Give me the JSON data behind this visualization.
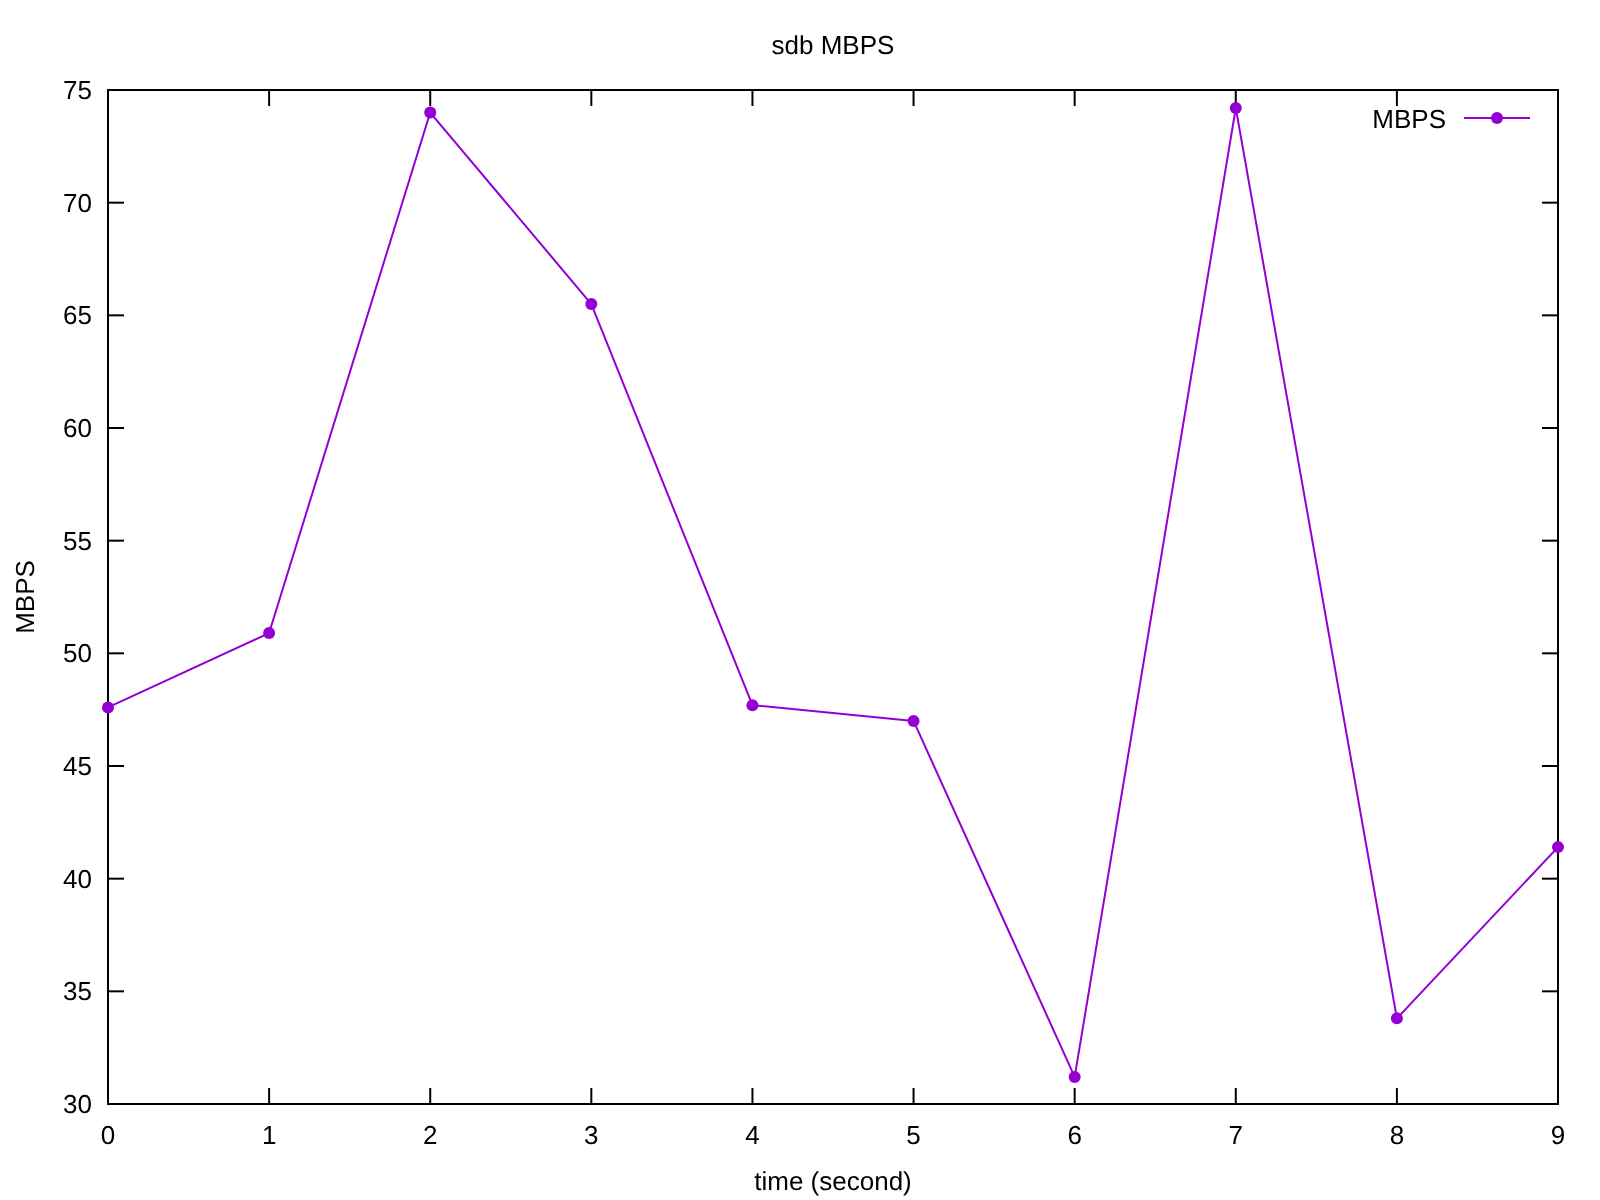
{
  "chart_data": {
    "type": "line",
    "title": "sdb MBPS",
    "xlabel": "time (second)",
    "ylabel": "MBPS",
    "x": [
      0,
      1,
      2,
      3,
      4,
      5,
      6,
      7,
      8,
      9
    ],
    "series": [
      {
        "name": "MBPS",
        "color": "#9400d3",
        "values": [
          47.6,
          50.9,
          74.0,
          65.5,
          47.7,
          47.0,
          31.2,
          74.2,
          33.8,
          41.4
        ]
      }
    ],
    "xlim": [
      0,
      9
    ],
    "xticks": [
      0,
      1,
      2,
      3,
      4,
      5,
      6,
      7,
      8,
      9
    ],
    "ylim": [
      30,
      75
    ],
    "yticks": [
      30,
      35,
      40,
      45,
      50,
      55,
      60,
      65,
      70,
      75
    ],
    "marker": "circle",
    "line_style": "solid",
    "legend": "top right",
    "grid": false
  }
}
